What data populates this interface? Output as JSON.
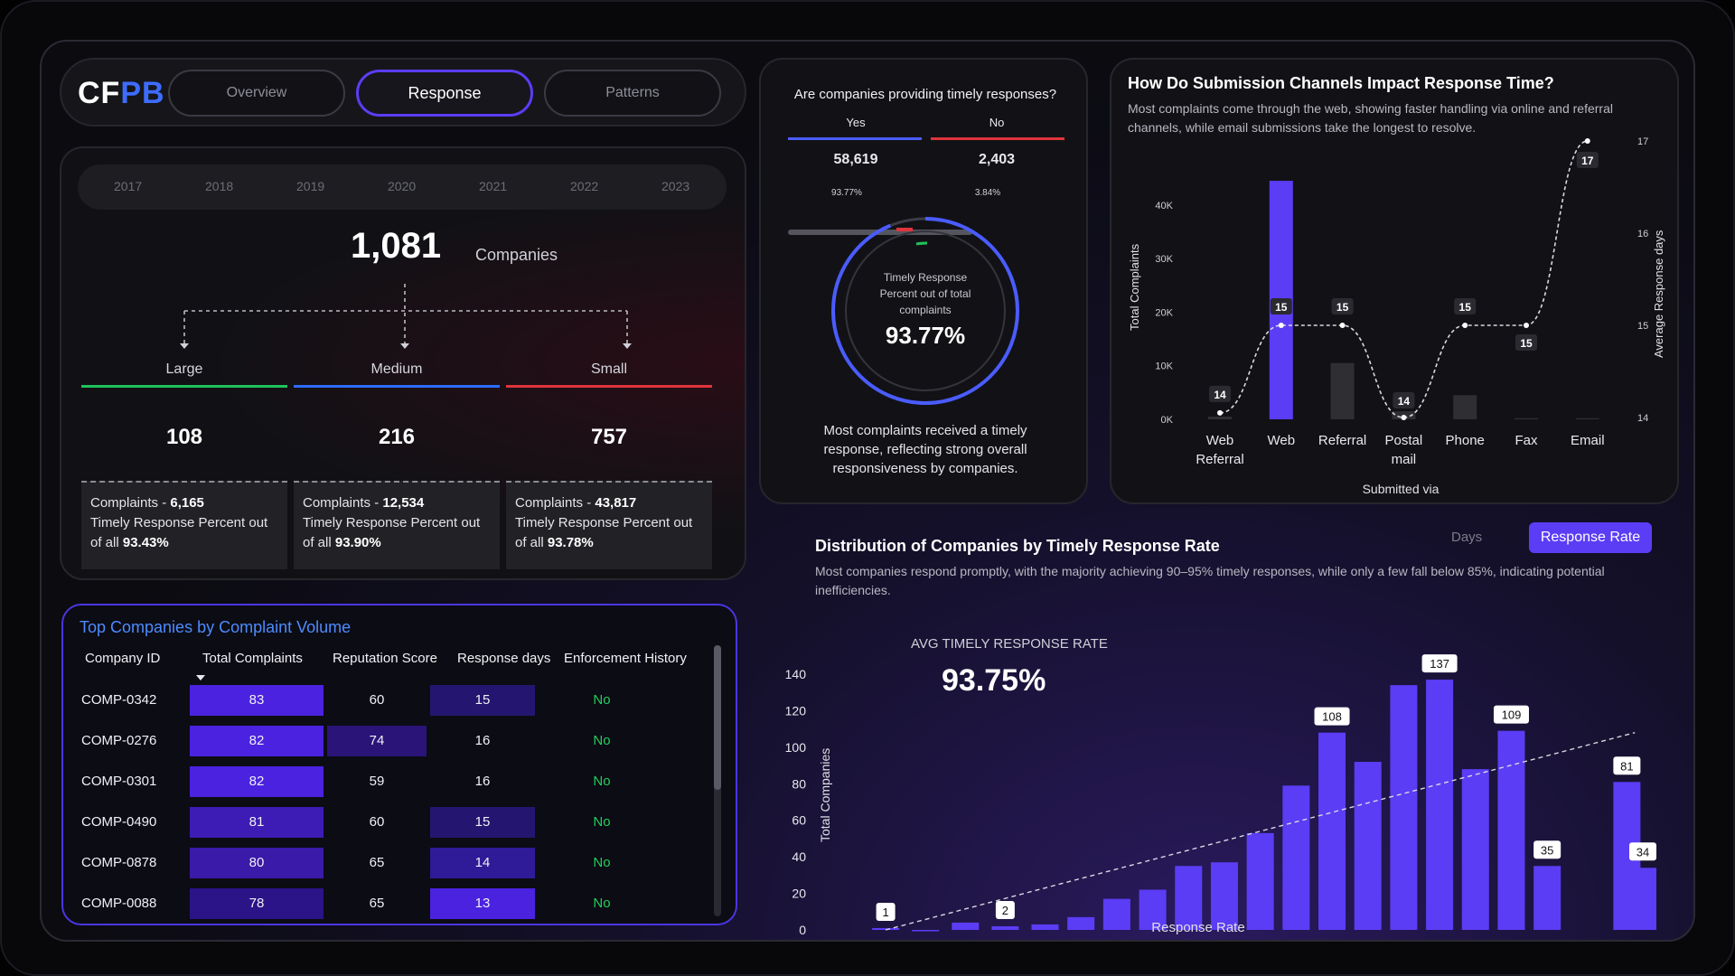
{
  "nav": {
    "logo_a": "CF",
    "logo_b": "PB",
    "tabs": [
      "Overview",
      "Response",
      "Patterns"
    ],
    "active_tab": "Response"
  },
  "summary": {
    "years": [
      "2017",
      "2018",
      "2019",
      "2020",
      "2021",
      "2022",
      "2023"
    ],
    "total_value": "1,081",
    "total_label": "Companies",
    "segments": [
      {
        "label": "Large",
        "color": "#1fc25a",
        "value": "108",
        "complaints_label": "Complaints - ",
        "complaints": "6,165",
        "timely_label": "Timely Response Percent out of all ",
        "timely": "93.43%"
      },
      {
        "label": "Medium",
        "color": "#2d6cff",
        "value": "216",
        "complaints_label": "Complaints - ",
        "complaints": "12,534",
        "timely_label": "Timely Response Percent out of all ",
        "timely": "93.90%"
      },
      {
        "label": "Small",
        "color": "#e0343c",
        "value": "757",
        "complaints_label": "Complaints - ",
        "complaints": "43,817",
        "timely_label": "Timely Response Percent out of all ",
        "timely": "93.78%"
      }
    ]
  },
  "table": {
    "title": "Top Companies by Complaint Volume",
    "columns": [
      "Company ID",
      "Total Complaints",
      "Reputation Score",
      "Response days",
      "Enforcement History"
    ],
    "rows": [
      {
        "id": "COMP-0342",
        "total": "83",
        "rep": "60",
        "days": "15",
        "enf": "No"
      },
      {
        "id": "COMP-0276",
        "total": "82",
        "rep": "74",
        "days": "16",
        "enf": "No"
      },
      {
        "id": "COMP-0301",
        "total": "82",
        "rep": "59",
        "days": "16",
        "enf": "No"
      },
      {
        "id": "COMP-0490",
        "total": "81",
        "rep": "60",
        "days": "15",
        "enf": "No"
      },
      {
        "id": "COMP-0878",
        "total": "80",
        "rep": "65",
        "days": "14",
        "enf": "No"
      },
      {
        "id": "COMP-0088",
        "total": "78",
        "rep": "65",
        "days": "13",
        "enf": "No"
      }
    ]
  },
  "timely": {
    "title": "Are companies providing timely responses?",
    "yes_label": "Yes",
    "no_label": "No",
    "yes_value": "58,619",
    "no_value": "2,403",
    "yes_pct": "93.77%",
    "no_pct": "3.84%",
    "gauge_label": "Timely Response Percent out of total complaints",
    "gauge_value": "93.77%",
    "gauge_fraction": 0.9377,
    "caption": "Most complaints received a timely response, reflecting strong overall responsiveness by companies.",
    "colors": {
      "yes": "#4a5cff",
      "no": "#e0343c"
    }
  },
  "channels": {
    "title": "How Do Submission Channels Impact Response Time?",
    "subtitle": "Most complaints come through the web, showing faster handling via online and referral channels, while email submissions take the longest to resolve."
  },
  "distribution": {
    "title": "Distribution of Companies by Timely Response Rate",
    "subtitle": "Most companies respond promptly, with the majority achieving 90–95% timely responses, while only a few fall below 85%, indicating potential inefficiencies.",
    "toggle_days": "Days",
    "toggle_rate": "Response Rate",
    "avg_label": "AVG TIMELY RESPONSE RATE",
    "avg_value": "93.75%"
  },
  "chart_data": [
    {
      "type": "bar",
      "title": "How Do Submission Channels Impact Response Time?",
      "xlabel": "Submitted via",
      "ylabel": "Total Complaints",
      "y2label": "Average Response days",
      "categories": [
        "Web Referral",
        "Web",
        "Referral",
        "Postal mail",
        "Phone",
        "Fax",
        "Email"
      ],
      "ylim": [
        0,
        45000
      ],
      "y2lim": [
        14,
        17
      ],
      "yticks": [
        "0K",
        "10K",
        "20K",
        "30K",
        "40K"
      ],
      "y2ticks": [
        "14",
        "15",
        "16",
        "17"
      ],
      "series": [
        {
          "name": "Total Complaints",
          "type": "bar",
          "values": [
            500,
            44500,
            10500,
            1500,
            4500,
            200,
            200
          ]
        },
        {
          "name": "Average Response days",
          "type": "line",
          "values": [
            14,
            15,
            15,
            14,
            15,
            15,
            17
          ],
          "labels": [
            "14",
            "15",
            "15",
            "14",
            "15",
            "15",
            "17"
          ],
          "plot_values": [
            14.05,
            15.0,
            15.0,
            14.0,
            15.0,
            15.0,
            17.0
          ]
        }
      ],
      "colors": {
        "highlight": "#5b3df5",
        "bar": "#2e2e33",
        "line": "#d8d8e0"
      }
    },
    {
      "type": "bar",
      "title": "Distribution of Companies by Timely Response Rate",
      "xlabel": "Response Rate",
      "ylabel": "Total Companies",
      "xlim": [
        80,
        100
      ],
      "ylim": [
        0,
        140
      ],
      "xticks": [
        "80%",
        "85%",
        "90%",
        "95%",
        "100%"
      ],
      "yticks": [
        "0",
        "20",
        "40",
        "60",
        "80",
        "100",
        "120",
        "140"
      ],
      "x": [
        81,
        82,
        83,
        84,
        85,
        85.9,
        86.8,
        87.7,
        88.6,
        89.5,
        90.4,
        91.3,
        92.2,
        93.1,
        94,
        94.9,
        95.8,
        96.7,
        97.6,
        99.6
      ],
      "values": [
        1,
        0,
        4,
        2,
        3,
        7,
        17,
        22,
        35,
        37,
        53,
        79,
        108,
        92,
        134,
        137,
        88,
        109,
        35,
        81
      ],
      "labeled": {
        "0": "1",
        "3": "2",
        "12": "108",
        "15": "137",
        "17": "109",
        "18": "35",
        "19": "81"
      },
      "extra_bar": {
        "x": 100,
        "value": 34,
        "label": "34"
      },
      "trendline": {
        "from": [
          81,
          0
        ],
        "to": [
          99.8,
          108
        ]
      },
      "colors": {
        "bar": "#5b3df5"
      }
    }
  ]
}
